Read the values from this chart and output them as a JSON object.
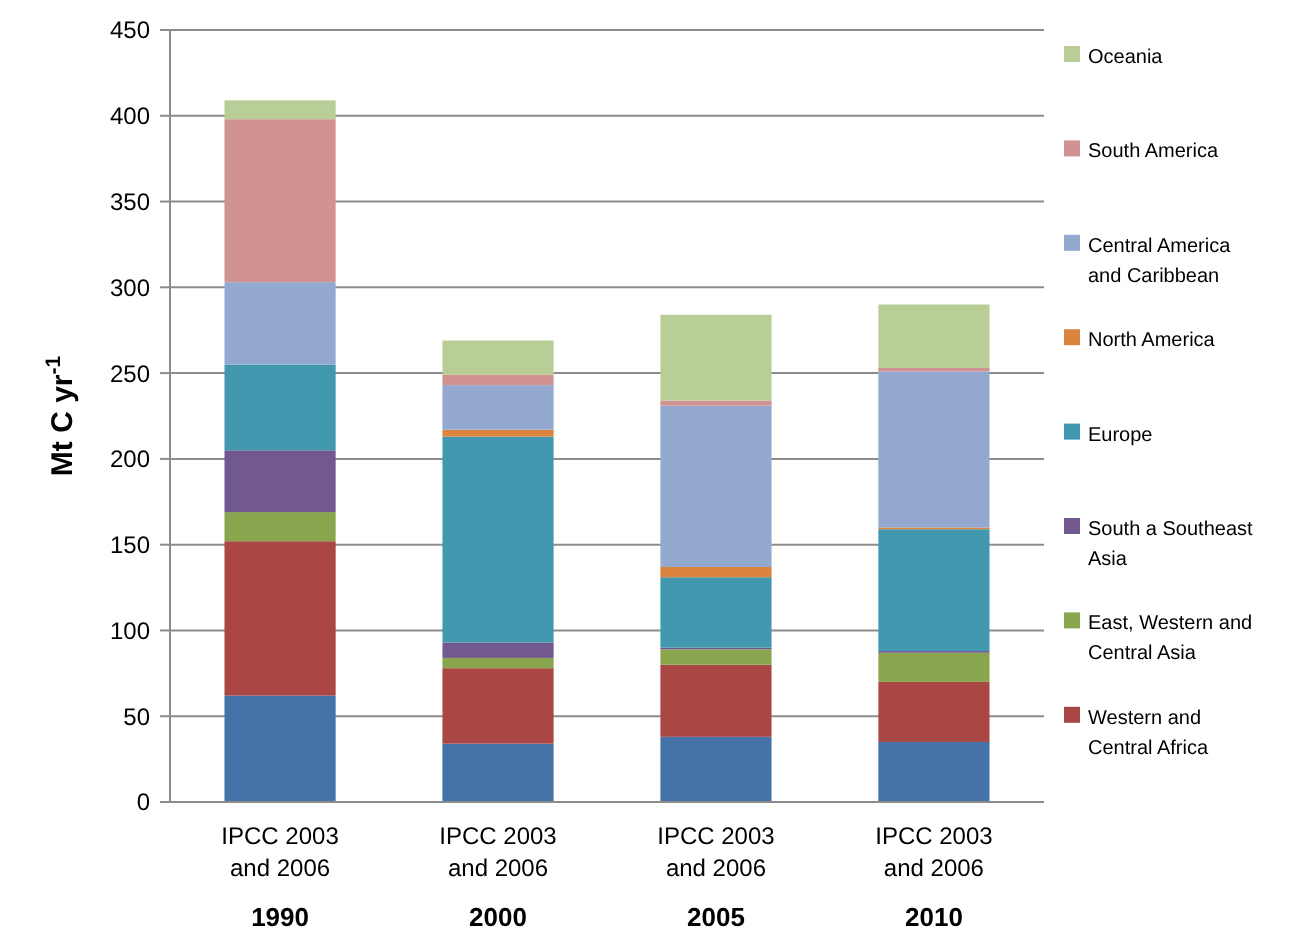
{
  "chart_data": {
    "type": "bar",
    "stacked": true,
    "ylabel": "Mt C yr$^{-1}$",
    "categories": [
      "IPCC 2003 and 2006\n1990",
      "IPCC 2003 and 2006\n2000",
      "IPCC 2003 and 2006\n2005",
      "IPCC 2003 and 2006\n2010"
    ],
    "series": [
      {
        "color": "#4572a7",
        "values": [
          62,
          34,
          38,
          35
        ]
      },
      {
        "name": "Western and Central Africa",
        "color": "#aa4643",
        "values": [
          90,
          44,
          42,
          35
        ]
      },
      {
        "name": "East, Western and Central Asia",
        "color": "#89a54e",
        "values": [
          17,
          6,
          9,
          17
        ]
      },
      {
        "name": "South a Southeast Asia",
        "color": "#71588f",
        "values": [
          36,
          9,
          1,
          1
        ]
      },
      {
        "name": "Europe",
        "color": "#4198af",
        "values": [
          50,
          120,
          41,
          71
        ]
      },
      {
        "name": "North America",
        "color": "#db843d",
        "values": [
          0,
          4,
          6,
          1
        ]
      },
      {
        "name": "Central America and Caribbean",
        "color": "#93a9cf",
        "values": [
          48,
          26,
          94,
          91
        ]
      },
      {
        "name": "South America",
        "color": "#d19392",
        "values": [
          95,
          6,
          3,
          2
        ]
      },
      {
        "name": "Oceania",
        "color": "#b9cd96",
        "values": [
          11,
          20,
          50,
          37
        ]
      }
    ],
    "ylim": [
      0,
      450
    ],
    "yticks": [
      0,
      50,
      100,
      150,
      200,
      250,
      300,
      350,
      400,
      450
    ],
    "grid": "y",
    "legend": "right"
  }
}
